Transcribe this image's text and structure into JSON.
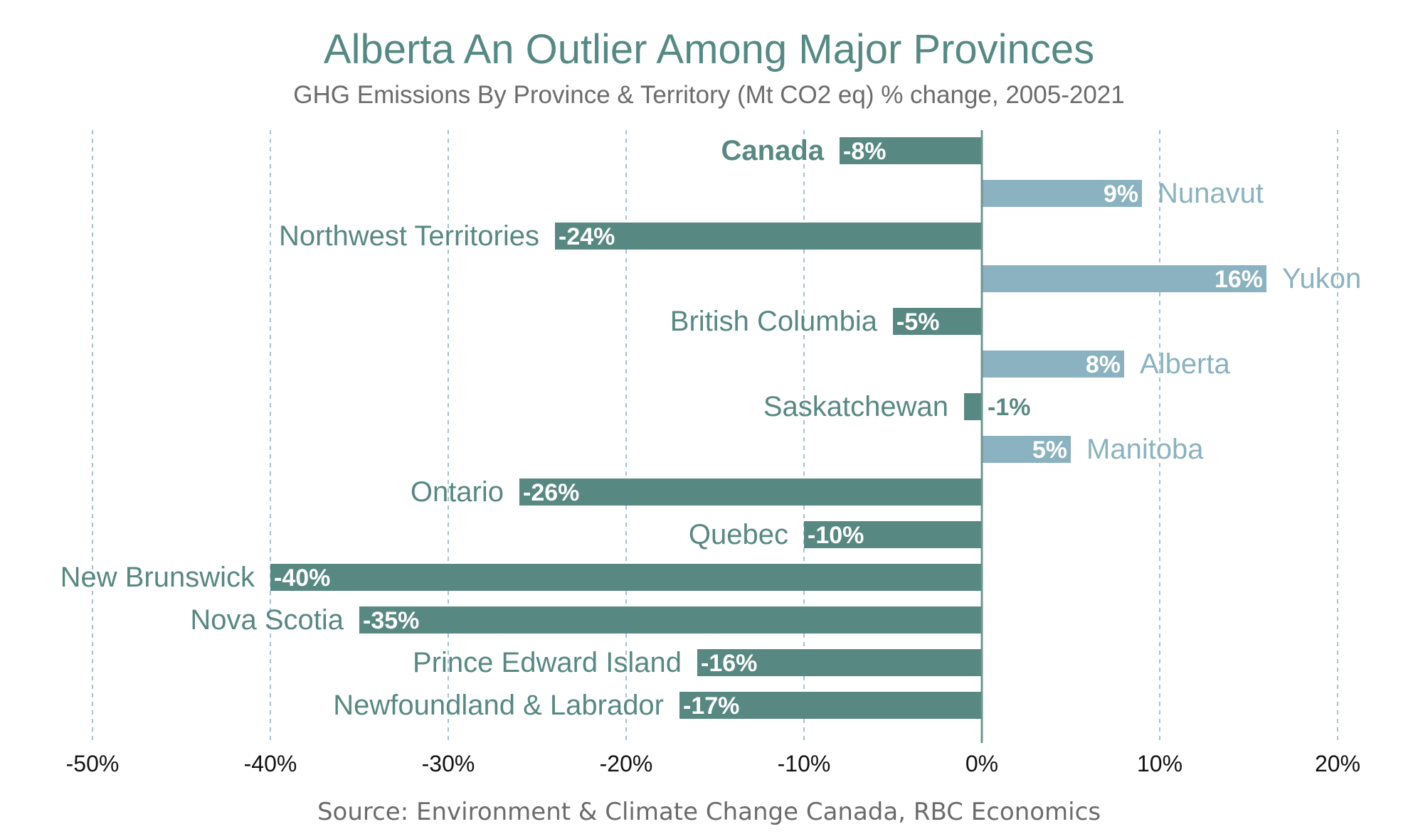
{
  "title": "Alberta An Outlier Among Major Provinces",
  "subtitle": "GHG Emissions By Province & Territory (Mt CO2 eq) % change, 2005-2021",
  "source": "Source: Environment & Climate Change Canada, RBC Economics",
  "colors": {
    "negative_bar": "#578882",
    "positive_bar": "#8ab2c0",
    "negative_label": "#578882",
    "positive_label": "#8ab2c0",
    "gridline": "#8fb3c9",
    "axis_text": "#111111"
  },
  "chart_data": {
    "type": "bar",
    "orientation": "horizontal",
    "categories": [
      "Canada",
      "Nunavut",
      "Northwest Territories",
      "Yukon",
      "British Columbia",
      "Alberta",
      "Saskatchewan",
      "Manitoba",
      "Ontario",
      "Quebec",
      "New Brunswick",
      "Nova Scotia",
      "Prince Edward Island",
      "Newfoundland & Labrador"
    ],
    "values": [
      -8,
      9,
      -24,
      16,
      -5,
      8,
      -1,
      5,
      -26,
      -10,
      -40,
      -35,
      -16,
      -17
    ],
    "value_labels": [
      "-8%",
      "9%",
      "-24%",
      "16%",
      "-5%",
      "8%",
      "-1%",
      "5%",
      "-26%",
      "-10%",
      "-40%",
      "-35%",
      "-16%",
      "-17%"
    ],
    "unit": "%",
    "xlim": [
      -50,
      20
    ],
    "x_ticks": [
      -50,
      -40,
      -30,
      -20,
      -10,
      0,
      10,
      20
    ],
    "x_tick_labels": [
      "-50%",
      "-40%",
      "-30%",
      "-20%",
      "-10%",
      "0%",
      "10%",
      "20%"
    ],
    "grid": "vertical dashed",
    "bold_category": "Canada",
    "legend": "none"
  }
}
